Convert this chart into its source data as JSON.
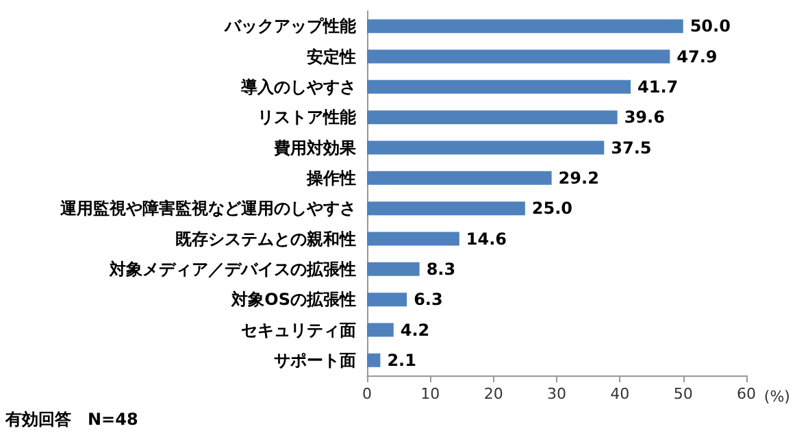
{
  "chart_data": {
    "type": "bar",
    "orientation": "horizontal",
    "categories": [
      "バックアップ性能",
      "安定性",
      "導入のしやすさ",
      "リストア性能",
      "費用対効果",
      "操作性",
      "運用監視や障害監視など運用のしやすさ",
      "既存システムとの親和性",
      "対象メディア／デバイスの拡張性",
      "対象OSの拡張性",
      "セキュリティ面",
      "サポート面"
    ],
    "values": [
      50.0,
      47.9,
      41.7,
      39.6,
      37.5,
      29.2,
      25.0,
      14.6,
      8.3,
      6.3,
      4.2,
      2.1
    ],
    "value_labels": [
      "50.0",
      "47.9",
      "41.7",
      "39.6",
      "37.5",
      "29.2",
      "25.0",
      "14.6",
      "8.3",
      "6.3",
      "4.2",
      "2.1"
    ],
    "color": "#4f81bd",
    "xlim": [
      0,
      60
    ],
    "xticks": [
      0,
      10,
      20,
      30,
      40,
      50,
      60
    ],
    "xlabel": "(%)",
    "grid": false,
    "annotations": [
      "有効回答　N=48"
    ]
  }
}
